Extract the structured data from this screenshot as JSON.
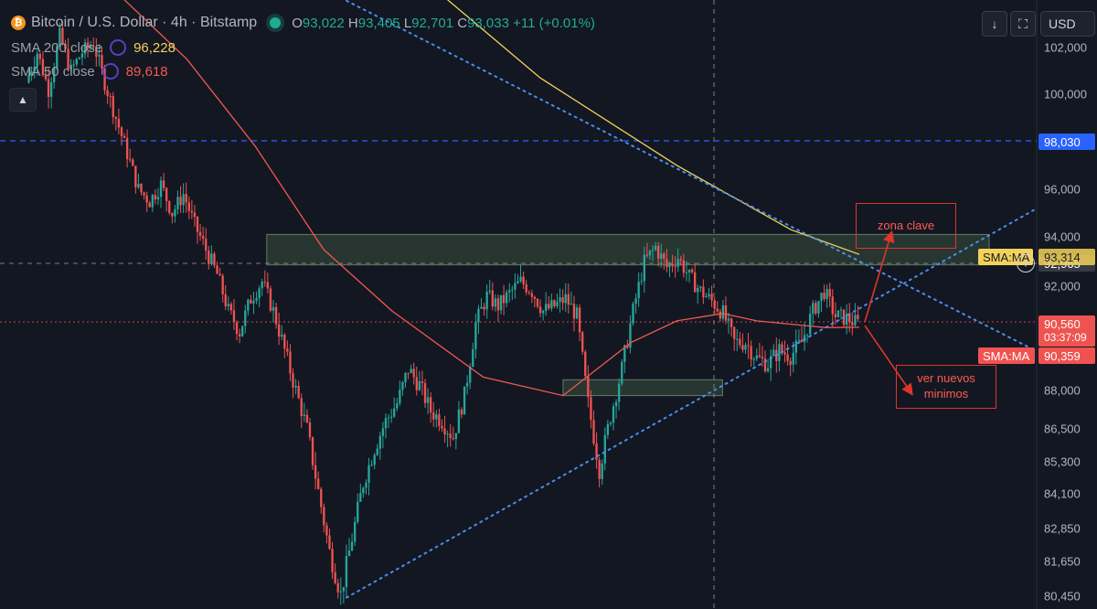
{
  "header": {
    "symbol": "Bitcoin / U.S. Dollar · 4h · Bitstamp",
    "ohlc": {
      "o_label": "O",
      "o": "93,022",
      "h_label": "H",
      "h": "93,405",
      "l_label": "L",
      "l": "92,701",
      "c_label": "C",
      "c": "93,033",
      "change": "+11 (+0.01%)"
    }
  },
  "indicators": [
    {
      "name": "SMA 200 close",
      "value": "96,228",
      "color": "#f2d25a"
    },
    {
      "name": "SMA 50 close",
      "value": "89,618",
      "color": "#f05a50"
    }
  ],
  "toolbar": {
    "download_icon": "↓",
    "fullscreen_icon": "⛶",
    "currency": "USD"
  },
  "price_axis": {
    "ticks": [
      "102,000",
      "100,000",
      "98,030",
      "96,000",
      "94,000",
      "92,965",
      "92,000",
      "90,560",
      "88,000",
      "86,500",
      "85,300",
      "84,100",
      "82,850",
      "81,650",
      "80,450"
    ],
    "tick_values": [
      102000,
      100000,
      98030,
      96000,
      94000,
      92965,
      92000,
      90560,
      88000,
      86500,
      85300,
      84100,
      82850,
      81650,
      80450
    ]
  },
  "tags": {
    "level_98030": "98,030",
    "crosshair_price": "92,965",
    "last_price": "90,560",
    "countdown": "03:37:09",
    "sma_yellow": {
      "label": "SMA:MA",
      "value": "93,314"
    },
    "sma_red": {
      "label": "SMA:MA",
      "value": "90,359"
    }
  },
  "annotations": {
    "zona_clave": "zona clave",
    "ver_nuevos": "ver nuevos minimos"
  },
  "colors": {
    "bg": "#131722",
    "up": "#26a69a",
    "down": "#ef5350",
    "blue": "#2962ff",
    "sma200": "#f2d25a",
    "sma50": "#f05a50",
    "zone": "#3e5a40"
  },
  "chart_data": {
    "type": "candlestick",
    "instrument": "Bitcoin / U.S. Dollar",
    "timeframe": "4h",
    "exchange": "Bitstamp",
    "y_ticks": [
      102000,
      100000,
      98030,
      96000,
      94000,
      92965,
      92000,
      90560,
      88000,
      86500,
      85300,
      84100,
      82850,
      81650,
      80450
    ],
    "price_path": [
      100500,
      101800,
      100200,
      102500,
      101000,
      101800,
      102200,
      100500,
      99000,
      97500,
      96000,
      95500,
      96200,
      95000,
      95800,
      94500,
      93500,
      92500,
      91000,
      90200,
      91500,
      92200,
      91000,
      89500,
      88000,
      86500,
      84200,
      82000,
      80500,
      82500,
      84500,
      85800,
      86800,
      87500,
      88800,
      88200,
      87200,
      86800,
      86200,
      87800,
      90500,
      91600,
      91200,
      91700,
      92200,
      91800,
      91000,
      91200,
      91500,
      90800,
      87500,
      85000,
      87000,
      88800,
      91000,
      93000,
      93600,
      92800,
      93200,
      92400,
      91800,
      91400,
      90900,
      89800,
      89800,
      89200,
      89000,
      89500,
      89300,
      89800,
      91000,
      91800,
      90800,
      90700,
      90500
    ],
    "series": [
      {
        "name": "SMA 200 close",
        "points": [
          [
            0,
            117000
          ],
          [
            20,
            111000
          ],
          [
            45,
            100700
          ],
          [
            57,
            97000
          ],
          [
            67,
            94300
          ],
          [
            73,
            93314
          ]
        ]
      },
      {
        "name": "SMA 50 close",
        "points": [
          [
            0,
            108000
          ],
          [
            14,
            101500
          ],
          [
            20,
            97800
          ],
          [
            26,
            93500
          ],
          [
            32,
            91000
          ],
          [
            40,
            88500
          ],
          [
            47,
            87800
          ],
          [
            53,
            89800
          ],
          [
            57,
            90600
          ],
          [
            61,
            90900
          ],
          [
            64,
            90600
          ],
          [
            70,
            90350
          ],
          [
            73,
            90359
          ]
        ]
      }
    ],
    "zones": [
      {
        "name": "zona-superior",
        "x": [
          21,
          73
        ],
        "y": [
          92900,
          94100
        ]
      },
      {
        "name": "zona-inferior",
        "x": [
          47,
          61
        ],
        "y": [
          87800,
          88400
        ]
      }
    ],
    "trendlines": [
      {
        "name": "resistencia-bajista",
        "points": [
          [
            24,
            105000
          ],
          [
            73,
            93050
          ]
        ]
      },
      {
        "name": "soporte-alcista",
        "points": [
          [
            28,
            80400
          ],
          [
            73,
            91100
          ]
        ]
      }
    ],
    "horizontal_levels": [
      98030,
      92965,
      90560
    ]
  }
}
